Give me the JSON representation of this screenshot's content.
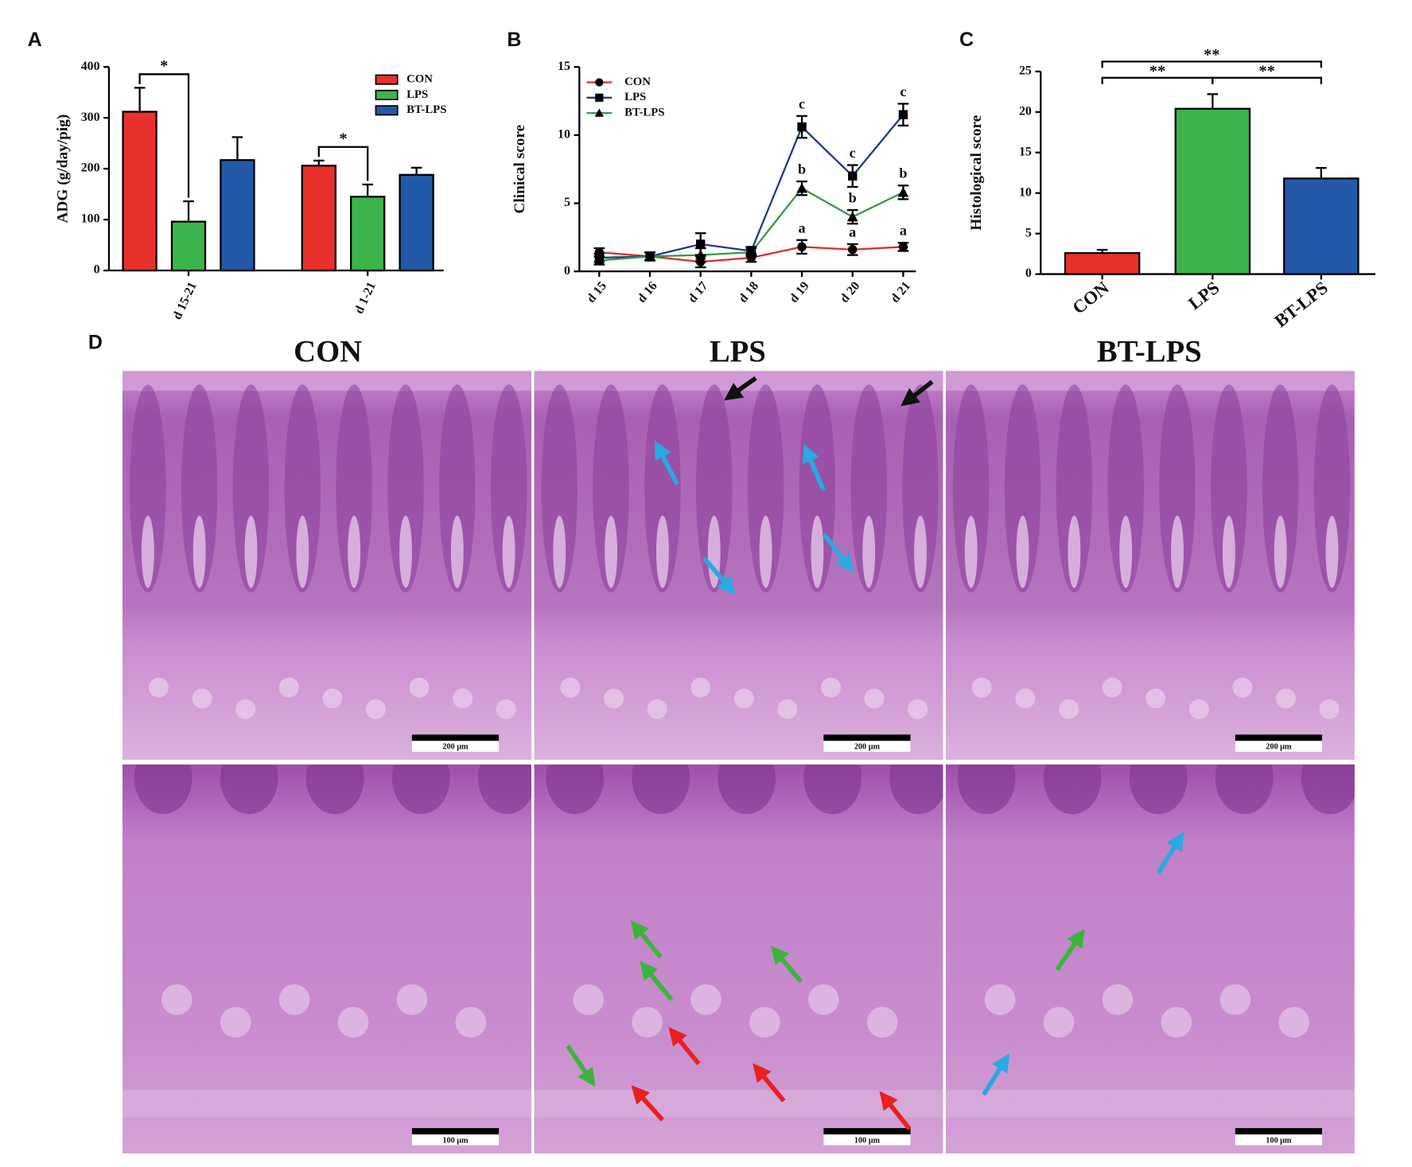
{
  "chart_data": [
    {
      "type": "bar",
      "panel_label": "A",
      "y_label": "ADG (g/day/pig)",
      "categories": [
        "d 15-21",
        "d 1-21"
      ],
      "series": [
        {
          "name": "CON",
          "color": "#e8302c",
          "values": [
            312,
            206
          ],
          "errors": [
            47,
            10
          ]
        },
        {
          "name": "LPS",
          "color": "#3cb44b",
          "values": [
            96,
            145
          ],
          "errors": [
            40,
            24
          ]
        },
        {
          "name": "BT-LPS",
          "color": "#2458a8",
          "values": [
            217,
            188
          ],
          "errors": [
            45,
            14
          ]
        }
      ],
      "ylim": [
        0,
        400
      ],
      "yticks": [
        0,
        100,
        200,
        300,
        400
      ],
      "legend": "upper-right",
      "annotations": [
        {
          "text": "*",
          "category": "d 15-21",
          "from": "CON",
          "to": "LPS"
        },
        {
          "text": "*",
          "category": "d 1-21",
          "from": "CON",
          "to": "LPS"
        }
      ]
    },
    {
      "type": "line",
      "panel_label": "B",
      "y_label": "Clinical score",
      "categories": [
        "d 15",
        "d 16",
        "d 17",
        "d 18",
        "d 19",
        "d 20",
        "d 21"
      ],
      "series": [
        {
          "name": "CON",
          "color": "#e02a2a",
          "marker": "circle",
          "values": [
            1.4,
            1.1,
            0.7,
            1.0,
            1.8,
            1.6,
            1.8
          ],
          "errors": [
            0.3,
            0.3,
            0.4,
            0.3,
            0.5,
            0.4,
            0.3
          ],
          "point_labels": [
            null,
            null,
            null,
            null,
            "a",
            "a",
            "a"
          ]
        },
        {
          "name": "LPS",
          "color": "#1a3a8c",
          "marker": "square",
          "values": [
            1.0,
            1.1,
            2.0,
            1.5,
            10.6,
            7.0,
            11.5
          ],
          "errors": [
            0.3,
            0.3,
            0.8,
            0.3,
            0.8,
            0.8,
            0.8
          ],
          "point_labels": [
            null,
            null,
            null,
            null,
            "c",
            "c",
            "c"
          ]
        },
        {
          "name": "BT-LPS",
          "color": "#2e9e3e",
          "marker": "triangle",
          "values": [
            0.8,
            1.1,
            1.2,
            1.4,
            6.1,
            4.0,
            5.8
          ],
          "errors": [
            0.3,
            0.3,
            0.5,
            0.3,
            0.5,
            0.5,
            0.5
          ],
          "point_labels": [
            null,
            null,
            null,
            null,
            "b",
            "b",
            "b"
          ]
        }
      ],
      "ylim": [
        0,
        15
      ],
      "yticks": [
        0,
        5,
        10,
        15
      ],
      "legend": "upper-left"
    },
    {
      "type": "bar",
      "panel_label": "C",
      "y_label": "Histological score",
      "categories": [
        "CON",
        "LPS",
        "BT-LPS"
      ],
      "values": [
        2.6,
        20.4,
        11.8
      ],
      "errors": [
        0.4,
        1.8,
        1.3
      ],
      "colors": [
        "#e8302c",
        "#3cb44b",
        "#2458a8"
      ],
      "ylim": [
        0,
        25
      ],
      "yticks": [
        0,
        5,
        10,
        15,
        20,
        25
      ],
      "annotations": [
        {
          "text": "**",
          "from": "CON",
          "to": "BT-LPS"
        },
        {
          "text": "**",
          "from": "CON",
          "to": "LPS"
        },
        {
          "text": "**",
          "from": "LPS",
          "to": "BT-LPS"
        }
      ]
    }
  ],
  "panel_d": {
    "label": "D",
    "columns": [
      "CON",
      "LPS",
      "BT-LPS"
    ],
    "scale_bars": [
      "200 μm",
      "100 μm"
    ]
  }
}
